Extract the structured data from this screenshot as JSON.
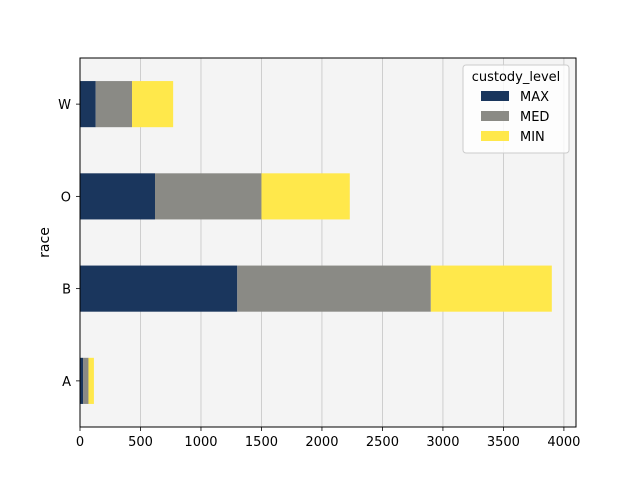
{
  "chart_data": {
    "type": "bar",
    "orientation": "horizontal",
    "stacked": true,
    "title": "",
    "xlabel": "",
    "ylabel": "race",
    "categories": [
      "A",
      "B",
      "O",
      "W"
    ],
    "series": [
      {
        "name": "MAX",
        "values": [
          25,
          1300,
          620,
          130
        ],
        "color": "#1a365d"
      },
      {
        "name": "MED",
        "values": [
          45,
          1600,
          880,
          300
        ],
        "color": "#8a8a85"
      },
      {
        "name": "MIN",
        "values": [
          45,
          1000,
          730,
          340
        ],
        "color": "#ffe84b"
      }
    ],
    "xlim": [
      0,
      4100
    ],
    "xticks": [
      0,
      500,
      1000,
      1500,
      2000,
      2500,
      3000,
      3500,
      4000
    ],
    "grid": "x",
    "plot_background": "#f4f4f4",
    "legend": {
      "title": "custody_level",
      "placement": "top-right"
    }
  }
}
